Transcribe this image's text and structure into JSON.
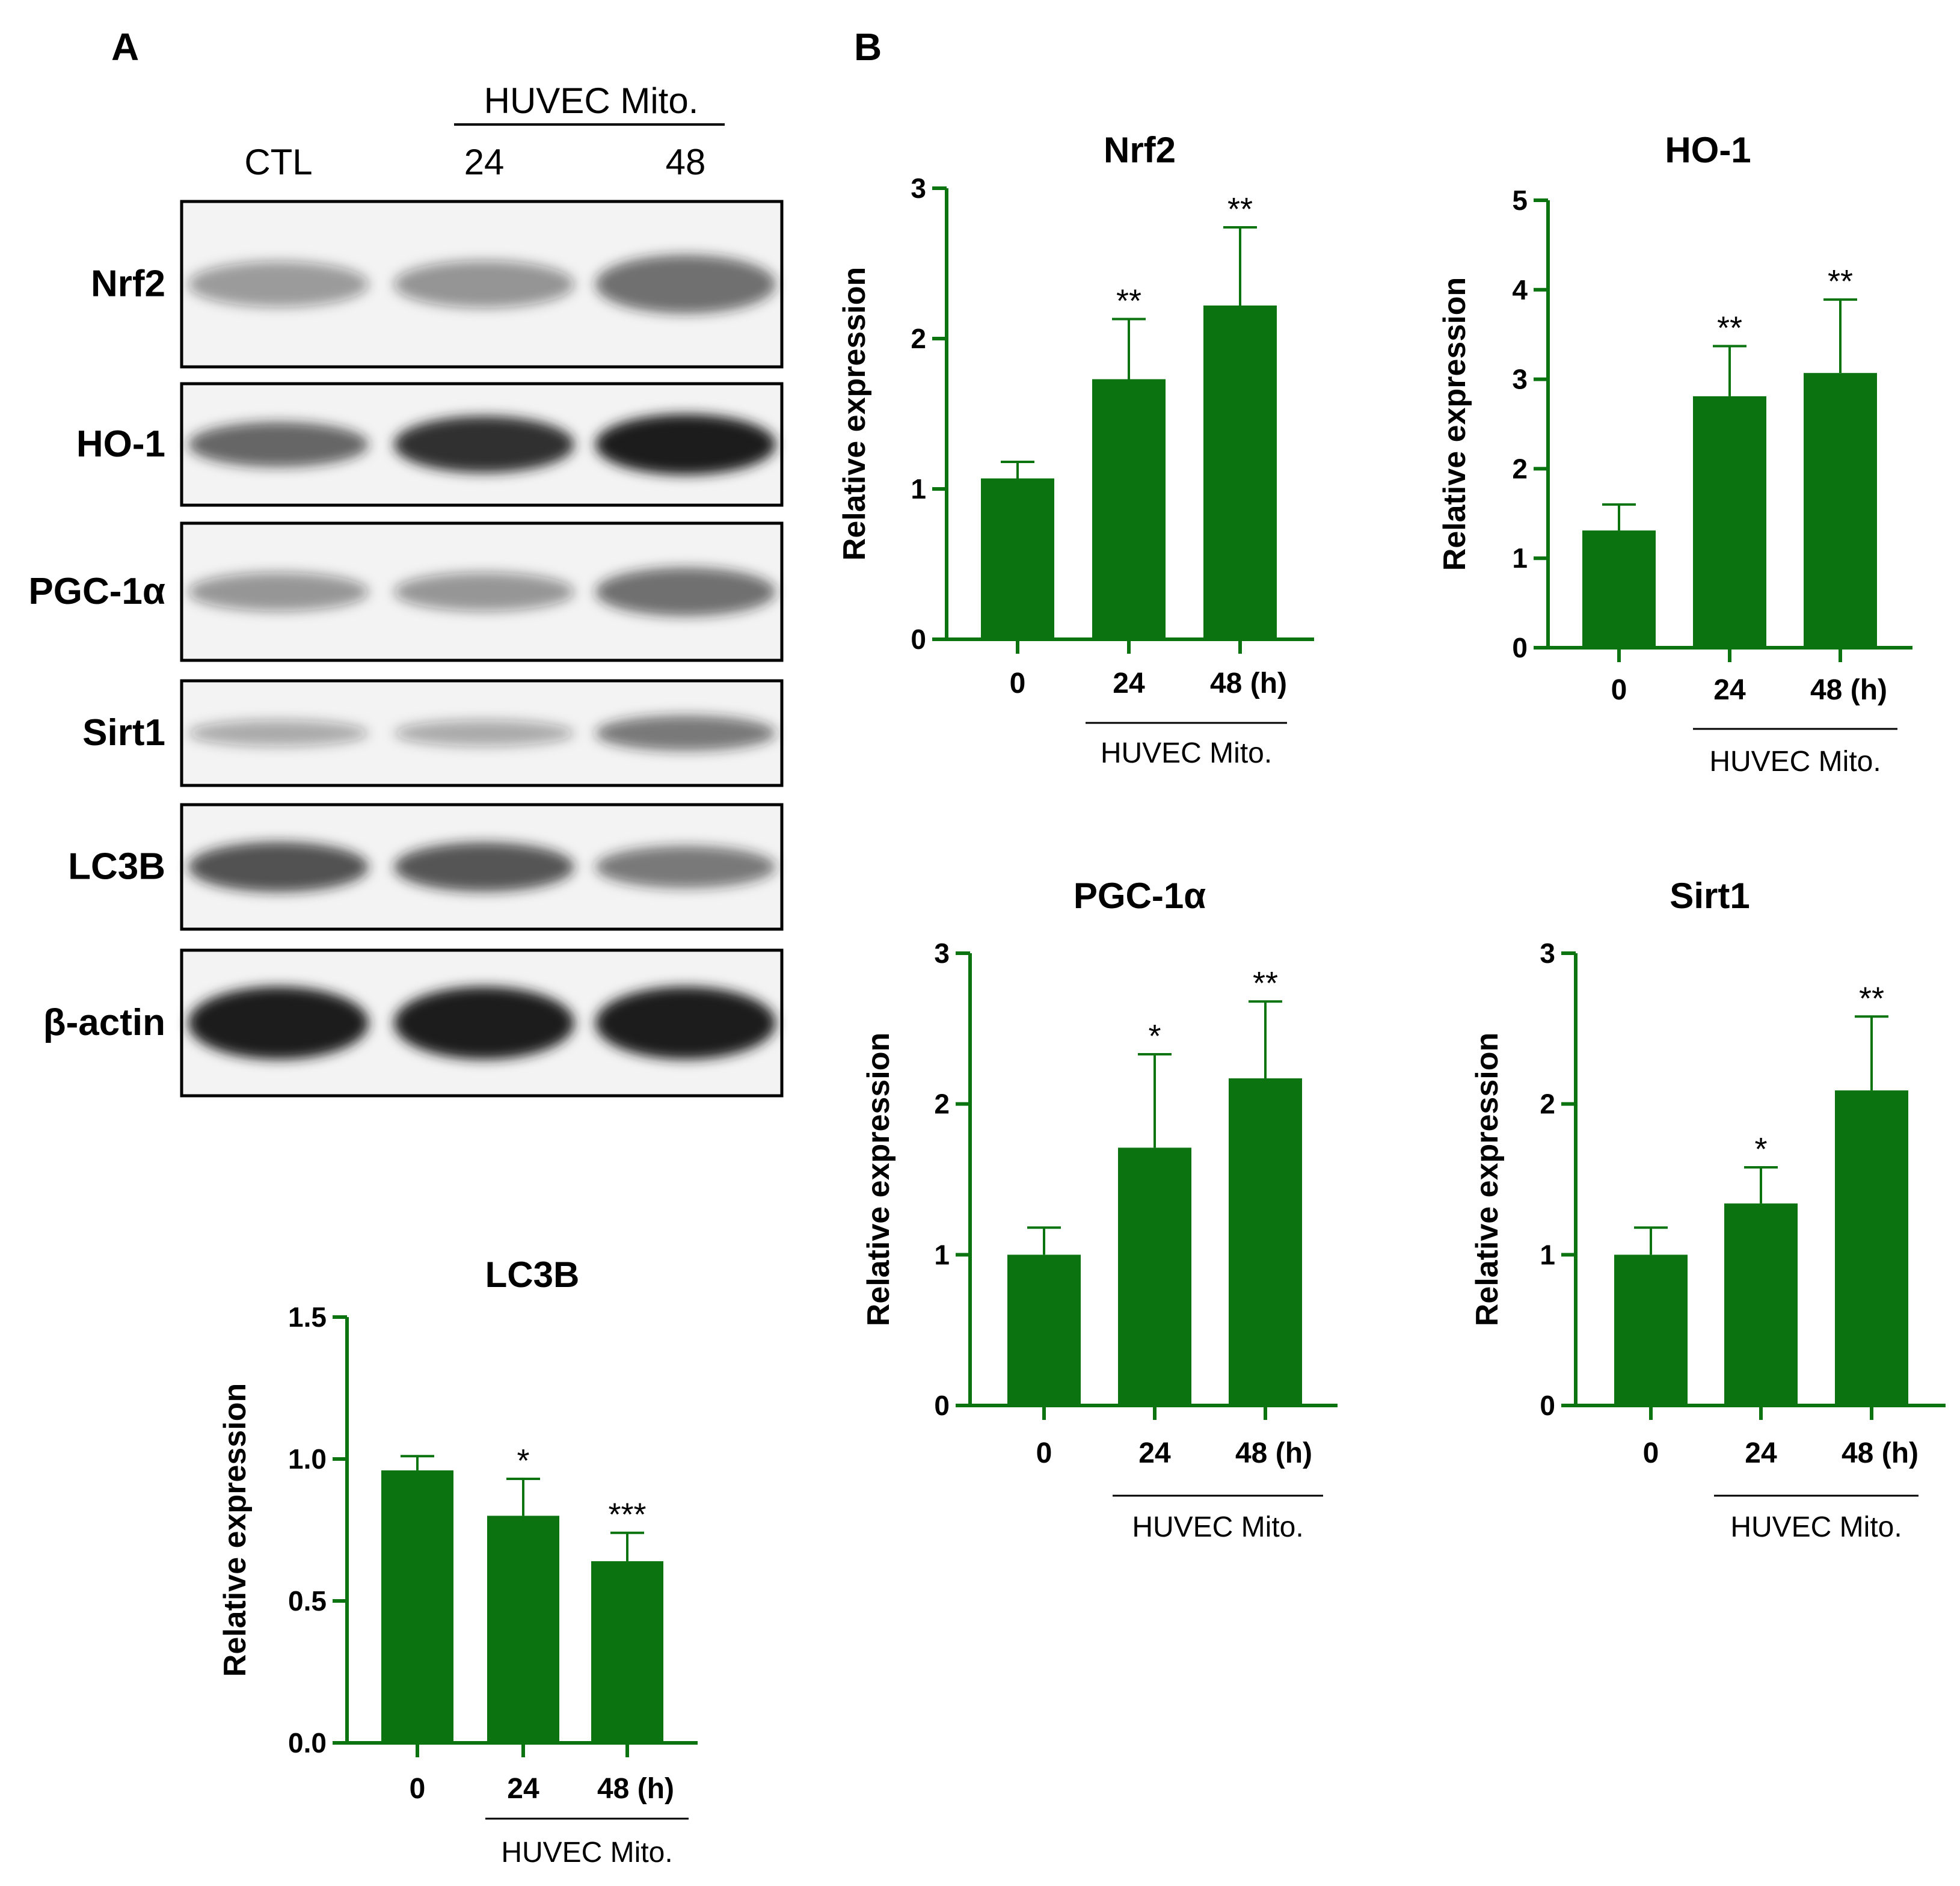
{
  "panel_labels": {
    "a": "A",
    "b": "B"
  },
  "colors": {
    "bar": "#0b7410",
    "axis": "#0b7410",
    "blot_bg": "#f3f3f3",
    "band": "#1e1e1e"
  },
  "blot": {
    "group_label": "HUVEC Mito.",
    "lanes": [
      "CTL",
      "24",
      "48"
    ],
    "rows": [
      {
        "label": "Nrf2",
        "band_intensity": [
          0.3,
          0.33,
          0.55
        ]
      },
      {
        "label": "HO-1",
        "band_intensity": [
          0.6,
          0.9,
          1.0
        ]
      },
      {
        "label": "PGC-1α",
        "band_intensity": [
          0.32,
          0.32,
          0.55
        ]
      },
      {
        "label": "Sirt1",
        "band_intensity": [
          0.22,
          0.22,
          0.5
        ]
      },
      {
        "label": "LC3B",
        "band_intensity": [
          0.7,
          0.68,
          0.5
        ]
      },
      {
        "label": "β-actin",
        "band_intensity": [
          1.0,
          1.0,
          1.0
        ]
      }
    ]
  },
  "chart_data": [
    {
      "id": "lc3b",
      "type": "bar",
      "title": "LC3B",
      "ylabel": "Relative expression",
      "categories": [
        "0",
        "24",
        "48 (h)"
      ],
      "values": [
        0.96,
        0.8,
        0.64
      ],
      "errors": [
        0.05,
        0.13,
        0.1
      ],
      "significance": [
        "",
        "*",
        "***"
      ],
      "ylim": [
        0,
        1.5
      ],
      "yticks": [
        "0.0",
        "0.5",
        "1.0",
        "1.5"
      ],
      "group_label": "HUVEC Mito."
    },
    {
      "id": "nrf2",
      "type": "bar",
      "title": "Nrf2",
      "ylabel": "Relative expression",
      "categories": [
        "0",
        "24",
        "48 (h)"
      ],
      "values": [
        1.07,
        1.73,
        2.22
      ],
      "errors": [
        0.11,
        0.4,
        0.52
      ],
      "significance": [
        "",
        "**",
        "**"
      ],
      "ylim": [
        0,
        3
      ],
      "yticks": [
        "0",
        "1",
        "2",
        "3"
      ],
      "group_label": "HUVEC Mito."
    },
    {
      "id": "ho1",
      "type": "bar",
      "title": "HO-1",
      "ylabel": "Relative expression",
      "categories": [
        "0",
        "24",
        "48 (h)"
      ],
      "values": [
        1.31,
        2.81,
        3.07
      ],
      "errors": [
        0.29,
        0.56,
        0.82
      ],
      "significance": [
        "",
        "**",
        "**"
      ],
      "ylim": [
        0,
        5
      ],
      "yticks": [
        "0",
        "1",
        "2",
        "3",
        "4",
        "5"
      ],
      "group_label": "HUVEC Mito."
    },
    {
      "id": "pgc1a",
      "type": "bar",
      "title": "PGC-1α",
      "ylabel": "Relative expression",
      "categories": [
        "0",
        "24",
        "48 (h)"
      ],
      "values": [
        1.0,
        1.71,
        2.17
      ],
      "errors": [
        0.18,
        0.62,
        0.51
      ],
      "significance": [
        "",
        "*",
        "**"
      ],
      "ylim": [
        0,
        3
      ],
      "yticks": [
        "0",
        "1",
        "2",
        "3"
      ],
      "group_label": "HUVEC Mito."
    },
    {
      "id": "sirt1",
      "type": "bar",
      "title": "Sirt1",
      "ylabel": "Relative expression",
      "categories": [
        "0",
        "24",
        "48 (h)"
      ],
      "values": [
        1.0,
        1.34,
        2.09
      ],
      "errors": [
        0.18,
        0.24,
        0.49
      ],
      "significance": [
        "",
        "*",
        "**"
      ],
      "ylim": [
        0,
        3
      ],
      "yticks": [
        "0",
        "1",
        "2",
        "3"
      ],
      "group_label": "HUVEC Mito."
    }
  ]
}
